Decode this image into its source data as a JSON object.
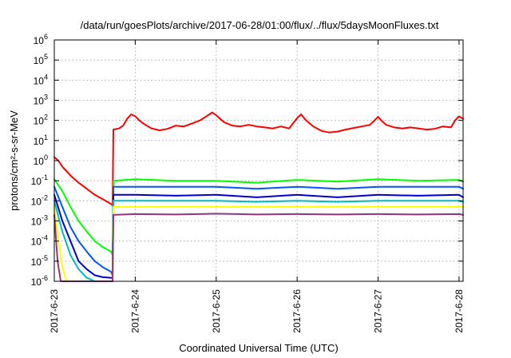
{
  "chart_data": {
    "type": "line",
    "title": "/data/run/goesPlots/archive/2017-06-28/01:00/flux/../flux/5daysMoonFluxes.txt",
    "xlabel": "Coordinated Universal Time (UTC)",
    "ylabel": "protons/cm²-s-sr-MeV",
    "xlim": [
      0,
      5.05
    ],
    "ylim": [
      1e-06,
      1000000.0
    ],
    "y_scale": "log",
    "grid": true,
    "legend": "none",
    "x_ticks": [
      {
        "value": 0,
        "label": "2017-6-23"
      },
      {
        "value": 1,
        "label": "2017-6-24"
      },
      {
        "value": 2,
        "label": "2017-6-25"
      },
      {
        "value": 3,
        "label": "2017-6-26"
      },
      {
        "value": 4,
        "label": "2017-6-27"
      },
      {
        "value": 5,
        "label": "2017-6-28"
      }
    ],
    "y_ticks": [
      {
        "value": 1e-06,
        "base": "10",
        "exp": "-6"
      },
      {
        "value": 1e-05,
        "base": "10",
        "exp": "-5"
      },
      {
        "value": 0.0001,
        "base": "10",
        "exp": "-4"
      },
      {
        "value": 0.001,
        "base": "10",
        "exp": "-3"
      },
      {
        "value": 0.01,
        "base": "10",
        "exp": "-2"
      },
      {
        "value": 0.1,
        "base": "10",
        "exp": "-1"
      },
      {
        "value": 1,
        "base": "10",
        "exp": "0"
      },
      {
        "value": 10.0,
        "base": "10",
        "exp": "1"
      },
      {
        "value": 100.0,
        "base": "10",
        "exp": "2"
      },
      {
        "value": 1000.0,
        "base": "10",
        "exp": "3"
      },
      {
        "value": 10000.0,
        "base": "10",
        "exp": "4"
      },
      {
        "value": 100000.0,
        "base": "10",
        "exp": "5"
      },
      {
        "value": 1000000.0,
        "base": "10",
        "exp": "6"
      }
    ],
    "series": [
      {
        "color": "#ff0000",
        "x": [
          0,
          0.05,
          0.1,
          0.2,
          0.3,
          0.4,
          0.5,
          0.6,
          0.7,
          0.72,
          0.73,
          0.8,
          0.85,
          0.9,
          0.95,
          1.0,
          1.05,
          1.1,
          1.2,
          1.3,
          1.4,
          1.5,
          1.6,
          1.7,
          1.8,
          1.9,
          1.95,
          2.0,
          2.05,
          2.1,
          2.2,
          2.3,
          2.4,
          2.5,
          2.6,
          2.7,
          2.8,
          2.9,
          3.0,
          3.05,
          3.1,
          3.2,
          3.3,
          3.4,
          3.5,
          3.6,
          3.7,
          3.8,
          3.9,
          4.0,
          4.05,
          4.1,
          4.2,
          4.3,
          4.4,
          4.5,
          4.6,
          4.7,
          4.8,
          4.9,
          4.95,
          5.0,
          5.05
        ],
        "y": [
          1.5,
          1.0,
          0.5,
          0.18,
          0.08,
          0.04,
          0.02,
          0.012,
          0.007,
          0.006,
          35,
          40,
          55,
          120,
          200,
          160,
          100,
          70,
          40,
          32,
          38,
          55,
          50,
          70,
          100,
          180,
          250,
          180,
          120,
          80,
          55,
          50,
          60,
          50,
          45,
          40,
          50,
          40,
          130,
          200,
          110,
          50,
          30,
          25,
          28,
          35,
          42,
          50,
          60,
          150,
          90,
          60,
          45,
          40,
          45,
          40,
          35,
          38,
          50,
          45,
          100,
          160,
          120
        ]
      },
      {
        "color": "#00ff00",
        "x": [
          0,
          0.1,
          0.2,
          0.3,
          0.4,
          0.5,
          0.6,
          0.7,
          0.72,
          0.73,
          1.0,
          1.5,
          2.0,
          2.5,
          3.0,
          3.5,
          4.0,
          4.5,
          5.0,
          5.05
        ],
        "y": [
          0.12,
          0.03,
          0.005,
          0.001,
          0.0003,
          0.0001,
          5e-05,
          3e-05,
          2e-05,
          0.1,
          0.12,
          0.1,
          0.1,
          0.08,
          0.11,
          0.09,
          0.12,
          0.1,
          0.11,
          0.09
        ]
      },
      {
        "color": "#0055ff",
        "x": [
          0,
          0.1,
          0.2,
          0.3,
          0.4,
          0.5,
          0.6,
          0.7,
          0.72,
          0.73,
          1.0,
          1.5,
          2.0,
          2.5,
          3.0,
          3.5,
          4.0,
          4.5,
          5.0,
          5.05
        ],
        "y": [
          0.05,
          0.005,
          0.0005,
          0.0001,
          3e-05,
          1e-05,
          5e-06,
          3e-06,
          2e-06,
          0.05,
          0.05,
          0.05,
          0.05,
          0.04,
          0.05,
          0.04,
          0.05,
          0.05,
          0.05,
          0.04
        ]
      },
      {
        "color": "#0000cc",
        "x": [
          0,
          0.1,
          0.2,
          0.3,
          0.4,
          0.5,
          0.6,
          0.7,
          0.72,
          0.73,
          1.0,
          1.5,
          2.0,
          2.5,
          3.0,
          3.5,
          4.0,
          4.5,
          5.0,
          5.05
        ],
        "y": [
          0.02,
          0.001,
          0.0001,
          1e-05,
          4e-06,
          2e-06,
          1.6e-06,
          1.5e-06,
          1.5e-06,
          0.02,
          0.02,
          0.018,
          0.02,
          0.015,
          0.02,
          0.015,
          0.02,
          0.018,
          0.02,
          0.015
        ]
      },
      {
        "color": "#00bbbb",
        "x": [
          0,
          0.1,
          0.2,
          0.3,
          0.4,
          0.5,
          0.6,
          0.7,
          0.72,
          0.73,
          1.0,
          1.5,
          2.0,
          2.5,
          3.0,
          3.5,
          4.0,
          4.5,
          5.0,
          5.05
        ],
        "y": [
          0.01,
          0.0003,
          2e-05,
          4e-06,
          1.5e-06,
          1e-06,
          1e-06,
          1e-06,
          1e-06,
          0.01,
          0.01,
          0.01,
          0.01,
          0.009,
          0.01,
          0.009,
          0.01,
          0.01,
          0.01,
          0.009
        ]
      },
      {
        "color": "#ffff00",
        "x": [
          0,
          0.05,
          0.1,
          0.15,
          0.72,
          0.73,
          1.0,
          1.5,
          2.0,
          2.5,
          3.0,
          3.5,
          4.0,
          4.5,
          5.0,
          5.05
        ],
        "y": [
          0.005,
          0.0001,
          5e-06,
          1e-06,
          1e-06,
          0.005,
          0.005,
          0.005,
          0.005,
          0.005,
          0.005,
          0.005,
          0.005,
          0.005,
          0.005,
          0.005
        ]
      },
      {
        "color": "#993377",
        "x": [
          0,
          0.04,
          0.08,
          0.72,
          0.73,
          1.0,
          1.5,
          2.0,
          2.5,
          3.0,
          3.5,
          4.0,
          4.5,
          5.0,
          5.05
        ],
        "y": [
          0.002,
          1e-05,
          1e-06,
          1e-06,
          0.002,
          0.0022,
          0.0021,
          0.0023,
          0.0021,
          0.0022,
          0.0021,
          0.0022,
          0.0021,
          0.0022,
          0.002
        ]
      }
    ]
  }
}
